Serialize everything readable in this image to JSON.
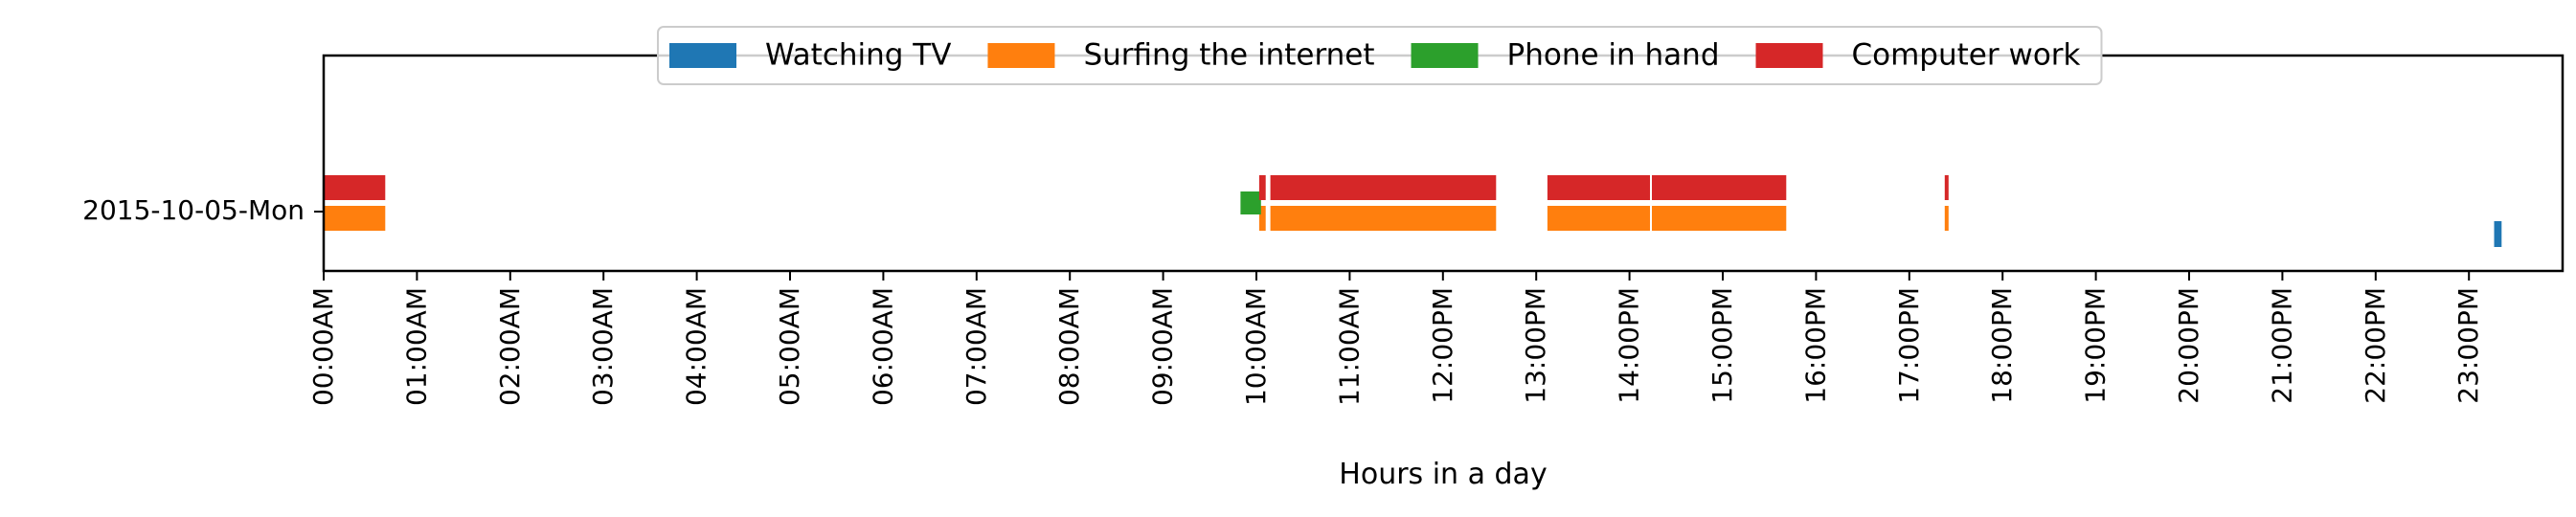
{
  "chart_data": {
    "type": "bar",
    "orientation": "horizontal-timeline",
    "title": "",
    "xlabel": "Hours in a day",
    "ylabel": "",
    "xlim": [
      0,
      24
    ],
    "grid": false,
    "legend_placement": "top-center",
    "categories": [
      "2015-10-05-Mon"
    ],
    "x_tick_labels": [
      "00:00AM",
      "01:00AM",
      "02:00AM",
      "03:00AM",
      "04:00AM",
      "05:00AM",
      "06:00AM",
      "07:00AM",
      "08:00AM",
      "09:00AM",
      "10:00AM",
      "11:00AM",
      "12:00PM",
      "13:00PM",
      "14:00PM",
      "15:00PM",
      "16:00PM",
      "17:00PM",
      "18:00PM",
      "19:00PM",
      "20:00PM",
      "21:00PM",
      "22:00PM",
      "23:00PM"
    ],
    "series": [
      {
        "name": "Watching TV",
        "color": "#1f77b4",
        "intervals": [
          [
            23.27,
            23.35
          ]
        ]
      },
      {
        "name": "Surfing the internet",
        "color": "#ff7f0e",
        "intervals": [
          [
            0.0,
            0.66
          ],
          [
            10.03,
            10.1
          ],
          [
            10.15,
            12.57
          ],
          [
            13.12,
            14.22
          ],
          [
            14.24,
            15.68
          ],
          [
            17.38,
            17.42
          ]
        ]
      },
      {
        "name": "Phone in hand",
        "color": "#2ca02c",
        "intervals": [
          [
            9.83,
            10.05
          ]
        ]
      },
      {
        "name": "Computer work",
        "color": "#d62728",
        "intervals": [
          [
            0.0,
            0.66
          ],
          [
            10.03,
            10.1
          ],
          [
            10.15,
            12.57
          ],
          [
            13.12,
            14.22
          ],
          [
            14.24,
            15.68
          ],
          [
            17.38,
            17.42
          ]
        ]
      }
    ]
  }
}
